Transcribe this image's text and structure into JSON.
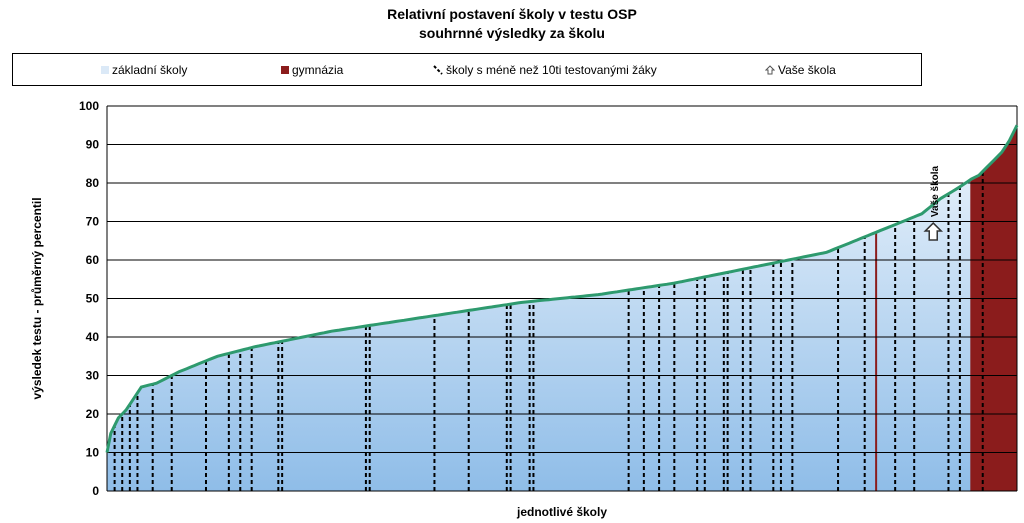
{
  "title": "Relativní postavení školy v testu OSP",
  "subtitle": "souhrnné výsledky za školu",
  "legend": {
    "item1": "základní školy",
    "item2": "gymnázia",
    "item3": "školy s méně než 10ti testovanými žáky",
    "item4": "Vaše škola"
  },
  "colors": {
    "curve": "#2e9a6e",
    "fill_top": "#eef5fc",
    "fill_bottom": "#8fbde8",
    "gymnazia": "#8b1c1c",
    "grid": "#000000"
  },
  "chart_data": {
    "type": "area",
    "title": "Relativní postavení školy v testu OSP",
    "subtitle": "souhrnné výsledky za školu",
    "xlabel": "jednotlivé školy",
    "ylabel": "výsledek testu - průměrný percentil",
    "ylim": [
      0,
      100
    ],
    "yticks": [
      0,
      10,
      20,
      30,
      40,
      50,
      60,
      70,
      80,
      90,
      100
    ],
    "grid": true,
    "legend_position": "top",
    "n_schools": 240,
    "series": [
      {
        "name": "základní školy",
        "x": [
          1,
          2,
          4,
          6,
          8,
          10,
          12,
          14,
          20,
          30,
          40,
          50,
          60,
          70,
          80,
          90,
          100,
          110,
          120,
          130,
          140,
          150,
          160,
          170,
          180,
          190,
          200,
          210,
          215,
          220,
          225,
          228,
          230,
          232,
          234,
          236,
          238,
          240
        ],
        "y": [
          10,
          15,
          19,
          21,
          24,
          27,
          27.5,
          28,
          31,
          35,
          37.5,
          39.5,
          41.5,
          43,
          44.5,
          46,
          47.5,
          49,
          50,
          51,
          52.5,
          54,
          56,
          58,
          60,
          62,
          66,
          70,
          72,
          76,
          79,
          81,
          82,
          84,
          86,
          88,
          91,
          95
        ]
      }
    ],
    "gymnazia_x": [
      203,
      228,
      233
    ],
    "small_schools_x": [
      3,
      5,
      7,
      9,
      13,
      18,
      27,
      33,
      36,
      39,
      46,
      47,
      69,
      70,
      87,
      96,
      106,
      107,
      112,
      113,
      138,
      142,
      146,
      150,
      156,
      158,
      163,
      164,
      168,
      170,
      176,
      178,
      181,
      193,
      200,
      208,
      213,
      222,
      225,
      231
    ],
    "your_school": {
      "label": "Vaše škola",
      "x": 218,
      "y": 67
    }
  }
}
